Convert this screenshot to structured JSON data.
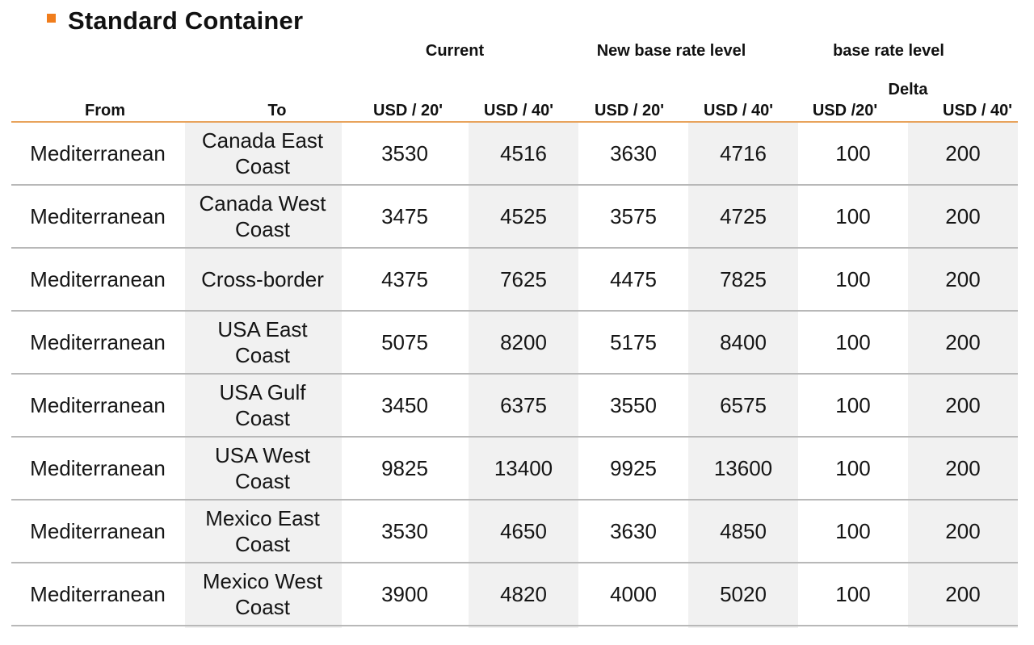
{
  "title": "Standard Container",
  "groups": {
    "current": "Current",
    "new_base": "New base rate level",
    "base_rate": "base rate level",
    "delta": "Delta"
  },
  "columns": {
    "from": "From",
    "to": "To",
    "cur20": "USD / 20'",
    "cur40": "USD / 40'",
    "new20": "USD / 20'",
    "new40": "USD / 40'",
    "d20": "USD /20'",
    "d40": "USD / 40'"
  },
  "rows": [
    {
      "from": "Mediterranean",
      "to": "Canada East Coast",
      "cur20": "3530",
      "cur40": "4516",
      "new20": "3630",
      "new40": "4716",
      "d20": "100",
      "d40": "200"
    },
    {
      "from": "Mediterranean",
      "to": "Canada West Coast",
      "cur20": "3475",
      "cur40": "4525",
      "new20": "3575",
      "new40": "4725",
      "d20": "100",
      "d40": "200"
    },
    {
      "from": "Mediterranean",
      "to": "Cross-border",
      "cur20": "4375",
      "cur40": "7625",
      "new20": "4475",
      "new40": "7825",
      "d20": "100",
      "d40": "200"
    },
    {
      "from": "Mediterranean",
      "to": "USA East Coast",
      "cur20": "5075",
      "cur40": "8200",
      "new20": "5175",
      "new40": "8400",
      "d20": "100",
      "d40": "200"
    },
    {
      "from": "Mediterranean",
      "to": "USA Gulf Coast",
      "cur20": "3450",
      "cur40": "6375",
      "new20": "3550",
      "new40": "6575",
      "d20": "100",
      "d40": "200"
    },
    {
      "from": "Mediterranean",
      "to": "USA West Coast",
      "cur20": "9825",
      "cur40": "13400",
      "new20": "9925",
      "new40": "13600",
      "d20": "100",
      "d40": "200"
    },
    {
      "from": "Mediterranean",
      "to": "Mexico East Coast",
      "cur20": "3530",
      "cur40": "4650",
      "new20": "3630",
      "new40": "4850",
      "d20": "100",
      "d40": "200"
    },
    {
      "from": "Mediterranean",
      "to": "Mexico West Coast",
      "cur20": "3900",
      "cur40": "4820",
      "new20": "4000",
      "new40": "5020",
      "d20": "100",
      "d40": "200"
    }
  ],
  "colors": {
    "accent": "#f07d1c",
    "header_rule": "#e8a35c",
    "shade": "#f1f1f1",
    "row_rule": "#b8b8b8"
  }
}
